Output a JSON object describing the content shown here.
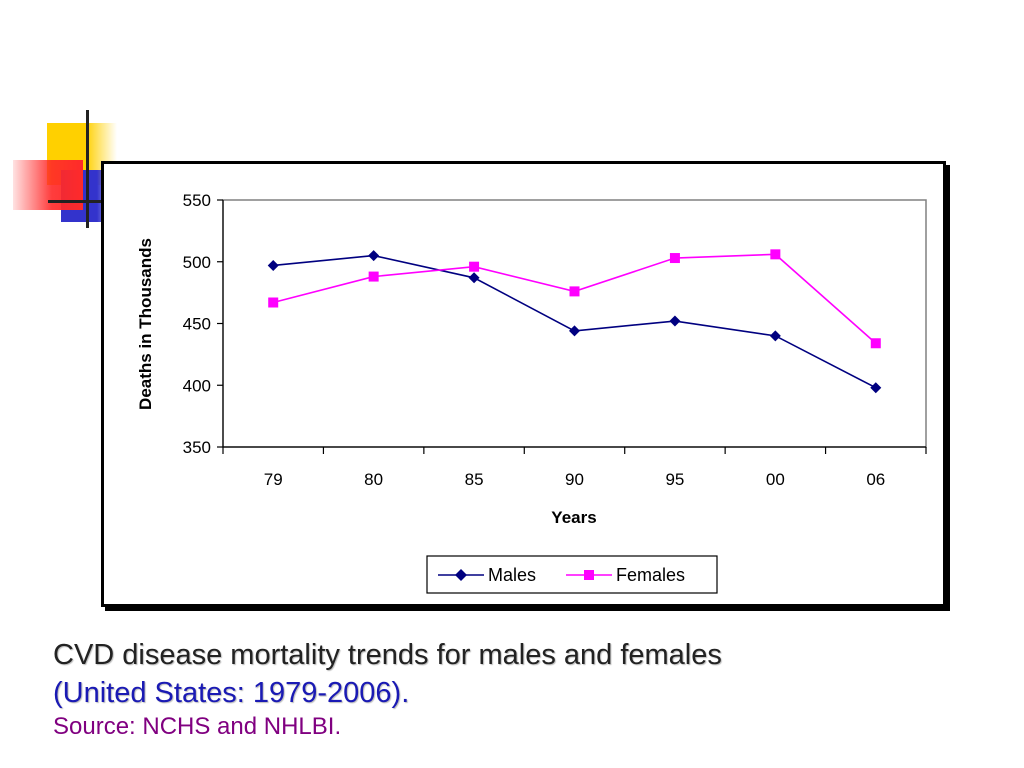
{
  "chart_data": {
    "type": "line",
    "categories": [
      "79",
      "80",
      "85",
      "90",
      "95",
      "00",
      "06"
    ],
    "series": [
      {
        "name": "Males",
        "values": [
          497,
          505,
          487,
          444,
          452,
          440,
          398
        ],
        "color": "#000080",
        "marker": "diamond"
      },
      {
        "name": "Females",
        "values": [
          467,
          488,
          496,
          476,
          503,
          506,
          434
        ],
        "color": "#ff00ff",
        "marker": "square"
      }
    ],
    "title": "",
    "xlabel": "Years",
    "ylabel": "Deaths in Thousands",
    "ylim": [
      350,
      550
    ],
    "yticks": [
      350,
      400,
      450,
      500,
      550
    ],
    "grid": false,
    "legend_position": "bottom"
  },
  "caption": {
    "line1": "CVD disease mortality trends for males and females",
    "line2": "(United States: 1979-2006).",
    "line3": "Source: NCHS and NHLBI."
  },
  "colors": {
    "plot_border": "#808080",
    "axis": "#000000",
    "deco_yellow": "#ffd000",
    "deco_blue": "#3333cc",
    "deco_red": "#ff2a2a"
  }
}
